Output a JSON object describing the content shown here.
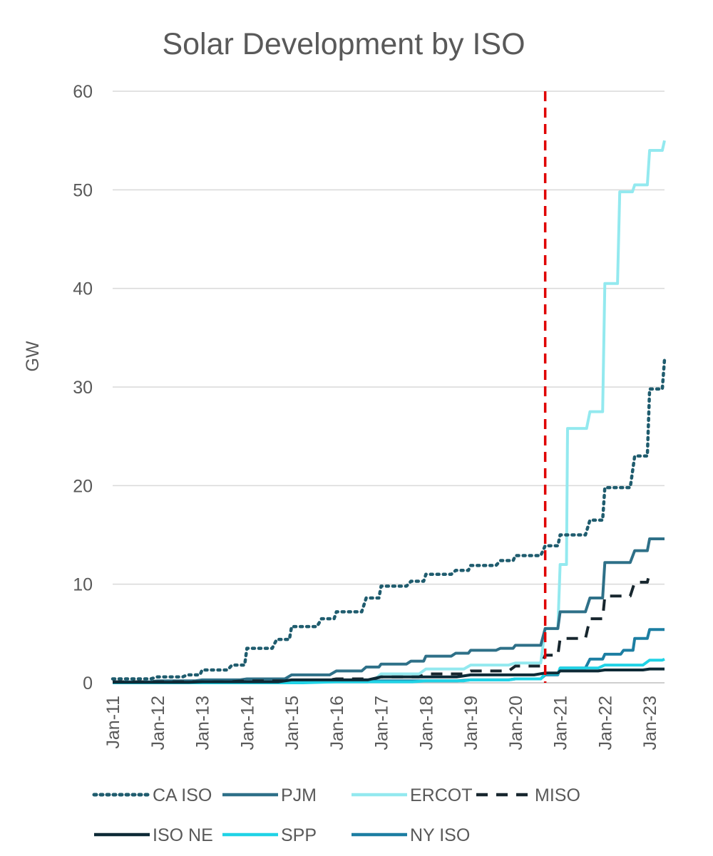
{
  "chart_data": {
    "type": "line",
    "title": "Solar Development by ISO",
    "xlabel": "",
    "ylabel": "GW",
    "ylim": [
      0,
      60
    ],
    "y_ticks": [
      0,
      10,
      20,
      30,
      40,
      50,
      60
    ],
    "xlim": [
      "2011-01",
      "2023-05"
    ],
    "x_ticks": [
      "Jan-11",
      "Jan-12",
      "Jan-13",
      "Jan-14",
      "Jan-15",
      "Jan-16",
      "Jan-17",
      "Jan-18",
      "Jan-19",
      "Jan-20",
      "Jan-21",
      "Jan-22",
      "Jan-23"
    ],
    "grid": true,
    "legend_position": "bottom",
    "reference_line": {
      "x": "2020-09",
      "color": "#e00000",
      "style": "dashed"
    },
    "series": [
      {
        "name": "CA ISO",
        "color": "#1f5c6e",
        "style": "dotted",
        "points": [
          [
            "2011-01",
            0.4
          ],
          [
            "2012-01",
            0.6
          ],
          [
            "2012-09",
            0.8
          ],
          [
            "2013-01",
            1.3
          ],
          [
            "2013-09",
            1.8
          ],
          [
            "2014-01",
            3.5
          ],
          [
            "2014-09",
            4.4
          ],
          [
            "2015-01",
            5.7
          ],
          [
            "2015-09",
            6.5
          ],
          [
            "2016-01",
            7.2
          ],
          [
            "2016-09",
            8.6
          ],
          [
            "2017-01",
            9.8
          ],
          [
            "2017-09",
            10.3
          ],
          [
            "2018-01",
            11.0
          ],
          [
            "2018-09",
            11.4
          ],
          [
            "2019-01",
            11.9
          ],
          [
            "2019-09",
            12.4
          ],
          [
            "2020-01",
            12.9
          ],
          [
            "2020-09",
            13.9
          ],
          [
            "2021-01",
            15.0
          ],
          [
            "2021-09",
            16.5
          ],
          [
            "2022-01",
            19.8
          ],
          [
            "2022-09",
            23.0
          ],
          [
            "2023-01",
            29.8
          ],
          [
            "2023-05",
            32.8
          ]
        ]
      },
      {
        "name": "PJM",
        "color": "#2e7088",
        "style": "solid",
        "points": [
          [
            "2011-01",
            0.1
          ],
          [
            "2012-01",
            0.2
          ],
          [
            "2013-01",
            0.3
          ],
          [
            "2014-01",
            0.4
          ],
          [
            "2015-01",
            0.8
          ],
          [
            "2016-01",
            1.2
          ],
          [
            "2016-09",
            1.6
          ],
          [
            "2017-01",
            1.9
          ],
          [
            "2017-09",
            2.2
          ],
          [
            "2018-01",
            2.7
          ],
          [
            "2018-09",
            3.0
          ],
          [
            "2019-01",
            3.3
          ],
          [
            "2019-09",
            3.5
          ],
          [
            "2020-01",
            3.8
          ],
          [
            "2020-09",
            5.5
          ],
          [
            "2021-01",
            7.2
          ],
          [
            "2021-09",
            8.6
          ],
          [
            "2022-01",
            12.2
          ],
          [
            "2022-09",
            13.4
          ],
          [
            "2023-01",
            14.6
          ],
          [
            "2023-05",
            14.6
          ]
        ]
      },
      {
        "name": "ERCOT",
        "color": "#93e9ef",
        "style": "solid",
        "points": [
          [
            "2011-01",
            0.0
          ],
          [
            "2014-01",
            0.1
          ],
          [
            "2016-01",
            0.3
          ],
          [
            "2017-01",
            0.9
          ],
          [
            "2018-01",
            1.4
          ],
          [
            "2019-01",
            1.8
          ],
          [
            "2020-01",
            2.0
          ],
          [
            "2020-09",
            5.5
          ],
          [
            "2021-01",
            12.0
          ],
          [
            "2021-03",
            25.8
          ],
          [
            "2021-09",
            27.5
          ],
          [
            "2022-01",
            40.5
          ],
          [
            "2022-05",
            49.8
          ],
          [
            "2022-09",
            50.5
          ],
          [
            "2023-01",
            54.0
          ],
          [
            "2023-05",
            55.0
          ]
        ]
      },
      {
        "name": "MISO",
        "color": "#17262e",
        "style": "dashed",
        "points": [
          [
            "2011-01",
            0.1
          ],
          [
            "2014-01",
            0.2
          ],
          [
            "2016-01",
            0.4
          ],
          [
            "2017-01",
            0.6
          ],
          [
            "2018-01",
            0.9
          ],
          [
            "2019-01",
            1.2
          ],
          [
            "2020-01",
            1.7
          ],
          [
            "2020-09",
            2.8
          ],
          [
            "2021-01",
            4.5
          ],
          [
            "2021-09",
            6.5
          ],
          [
            "2022-01",
            8.8
          ],
          [
            "2022-09",
            10.2
          ],
          [
            "2023-01",
            11.2
          ]
        ]
      },
      {
        "name": "ISO NE",
        "color": "#0d2a36",
        "style": "solid",
        "points": [
          [
            "2011-01",
            0.05
          ],
          [
            "2013-01",
            0.1
          ],
          [
            "2015-01",
            0.3
          ],
          [
            "2017-01",
            0.6
          ],
          [
            "2019-01",
            0.8
          ],
          [
            "2020-09",
            1.0
          ],
          [
            "2021-01",
            1.2
          ],
          [
            "2022-01",
            1.3
          ],
          [
            "2023-01",
            1.4
          ],
          [
            "2023-05",
            1.4
          ]
        ]
      },
      {
        "name": "SPP",
        "color": "#20d3e6",
        "style": "solid",
        "points": [
          [
            "2011-01",
            0.0
          ],
          [
            "2016-01",
            0.1
          ],
          [
            "2018-01",
            0.2
          ],
          [
            "2019-01",
            0.3
          ],
          [
            "2020-01",
            0.4
          ],
          [
            "2020-09",
            0.9
          ],
          [
            "2021-01",
            1.5
          ],
          [
            "2022-01",
            1.8
          ],
          [
            "2023-01",
            2.3
          ],
          [
            "2023-05",
            2.4
          ]
        ]
      },
      {
        "name": "NY ISO",
        "color": "#1c7ea2",
        "style": "solid",
        "points": [
          [
            "2011-01",
            0.0
          ],
          [
            "2015-01",
            0.1
          ],
          [
            "2017-01",
            0.2
          ],
          [
            "2019-01",
            0.3
          ],
          [
            "2020-01",
            0.4
          ],
          [
            "2020-09",
            0.8
          ],
          [
            "2021-01",
            1.5
          ],
          [
            "2021-09",
            2.4
          ],
          [
            "2022-01",
            2.9
          ],
          [
            "2022-06",
            3.3
          ],
          [
            "2022-09",
            4.5
          ],
          [
            "2023-01",
            5.4
          ],
          [
            "2023-05",
            5.4
          ]
        ]
      }
    ]
  }
}
